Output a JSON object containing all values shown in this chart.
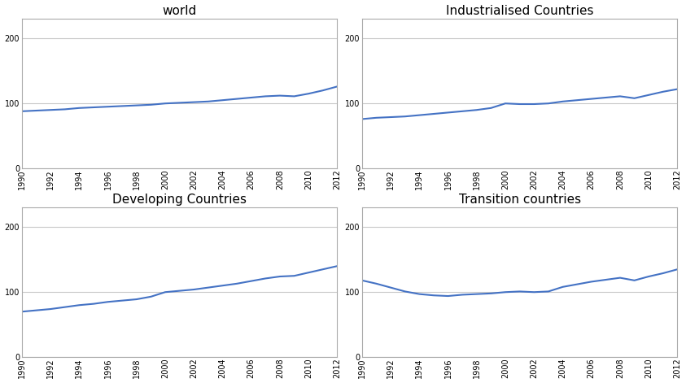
{
  "titles": [
    "world",
    "Industrialised Countries",
    "Developing Countries",
    "Transition countries"
  ],
  "years": [
    1990,
    1991,
    1992,
    1993,
    1994,
    1995,
    1996,
    1997,
    1998,
    1999,
    2000,
    2001,
    2002,
    2003,
    2004,
    2005,
    2006,
    2007,
    2008,
    2009,
    2010,
    2011,
    2012
  ],
  "world": [
    88,
    89,
    90,
    91,
    93,
    94,
    95,
    96,
    97,
    98,
    100,
    101,
    102,
    103,
    105,
    107,
    109,
    111,
    112,
    111,
    115,
    120,
    126
  ],
  "industrialised": [
    76,
    78,
    79,
    80,
    82,
    84,
    86,
    88,
    90,
    93,
    100,
    99,
    99,
    100,
    103,
    105,
    107,
    109,
    111,
    108,
    113,
    118,
    122
  ],
  "developing": [
    70,
    72,
    74,
    77,
    80,
    82,
    85,
    87,
    89,
    93,
    100,
    102,
    104,
    107,
    110,
    113,
    117,
    121,
    124,
    125,
    130,
    135,
    140
  ],
  "transition": [
    118,
    113,
    107,
    101,
    97,
    95,
    94,
    96,
    97,
    98,
    100,
    101,
    100,
    101,
    108,
    112,
    116,
    119,
    122,
    118,
    124,
    129,
    135
  ],
  "line_color": "#4472C4",
  "line_width": 1.5,
  "ylim": [
    0,
    230
  ],
  "yticks": [
    0,
    100,
    200
  ],
  "title_fontsize": 11,
  "tick_fontsize": 7,
  "grid_color": "#C8C8C8",
  "bg_color": "#FFFFFF",
  "border_color": "#AAAAAA"
}
